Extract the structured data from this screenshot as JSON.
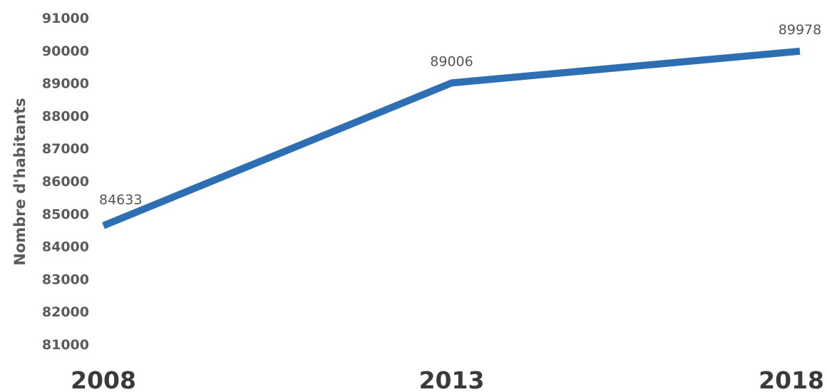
{
  "chart_data": {
    "type": "line",
    "title": "",
    "xlabel": "",
    "ylabel": "Nombre d'habitants",
    "categories": [
      "2008",
      "2013",
      "2018"
    ],
    "series": [
      {
        "values": [
          84633,
          89006,
          89978
        ],
        "data_labels": [
          "84633",
          "89006",
          "89978"
        ]
      }
    ],
    "ylim": [
      81000,
      91000
    ],
    "yticks": [
      "81000",
      "82000",
      "83000",
      "84000",
      "85000",
      "86000",
      "87000",
      "88000",
      "89000",
      "90000",
      "91000"
    ],
    "grid": false,
    "legend": "none",
    "colors": {
      "line": "#2e6fb3"
    }
  }
}
